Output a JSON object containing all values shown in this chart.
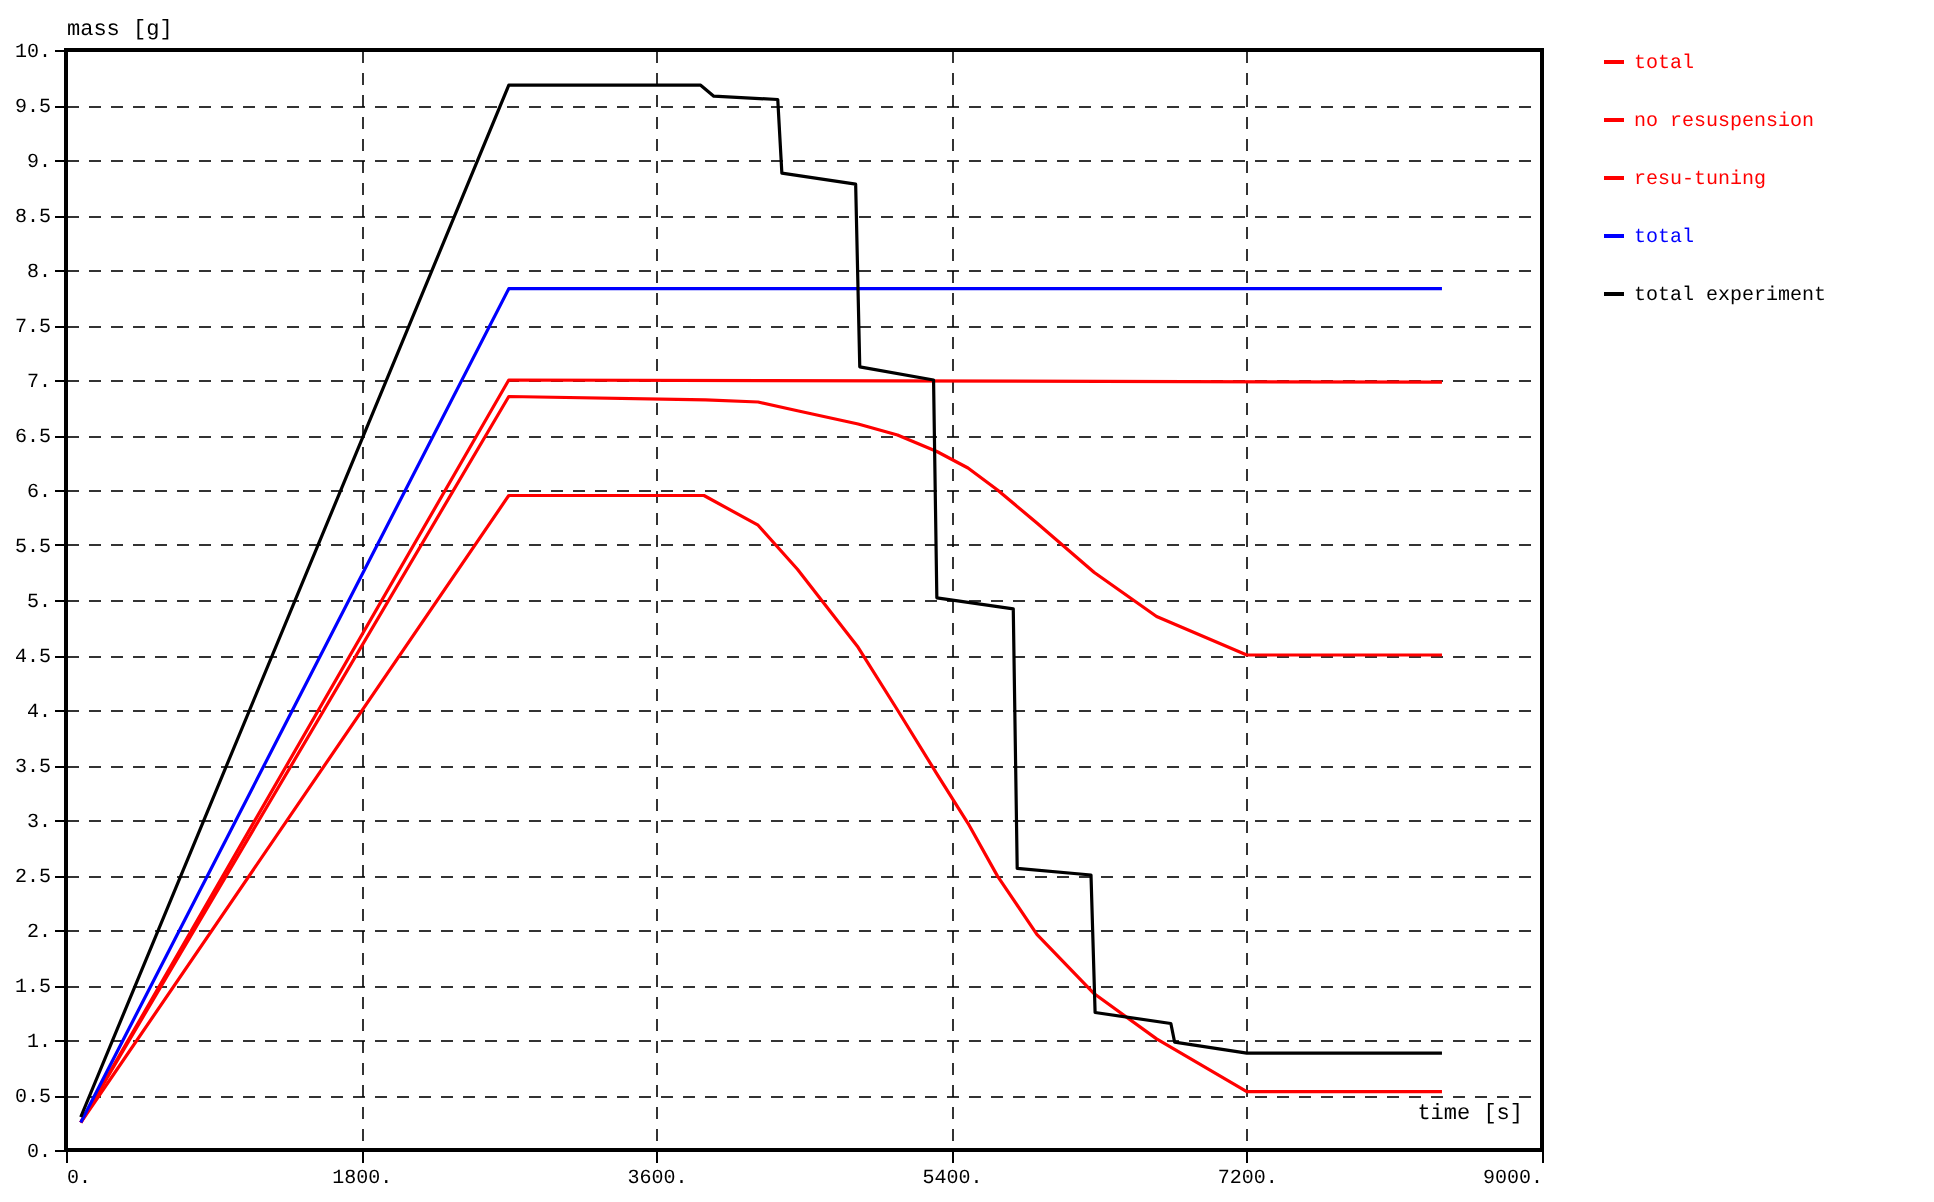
{
  "chart_data": {
    "type": "line",
    "xlabel": "time [s]",
    "ylabel": "mass [g]",
    "xlim": [
      0,
      9000
    ],
    "ylim": [
      0,
      10
    ],
    "xticks": [
      {
        "value": 0,
        "label": "0."
      },
      {
        "value": 1800,
        "label": "1800."
      },
      {
        "value": 3600,
        "label": "3600."
      },
      {
        "value": 5400,
        "label": "5400."
      },
      {
        "value": 7200,
        "label": "7200."
      },
      {
        "value": 9000,
        "label": "9000."
      }
    ],
    "yticks": [
      {
        "value": 0,
        "label": "0."
      },
      0.5,
      {
        "value": 1,
        "label": "1."
      },
      1.5,
      {
        "value": 2,
        "label": "2."
      },
      2.5,
      {
        "value": 3,
        "label": "3."
      },
      3.5,
      {
        "value": 4,
        "label": "4."
      },
      4.5,
      {
        "value": 5,
        "label": "5."
      },
      5.5,
      {
        "value": 6,
        "label": "6."
      },
      6.5,
      {
        "value": 7,
        "label": "7."
      },
      7.5,
      {
        "value": 8,
        "label": "8."
      },
      8.5,
      {
        "value": 9,
        "label": "9."
      },
      9.5,
      {
        "value": 10,
        "label": "10."
      }
    ],
    "grid": true,
    "legend": "right",
    "marker": "none",
    "line_style": "solid",
    "series": [
      {
        "name": "total",
        "color": "#ff0000",
        "x": [
          90,
          2700,
          3900,
          4220,
          4460,
          4830,
          5070,
          5310,
          5500,
          5680,
          5920,
          6270,
          6650,
          7200,
          8390
        ],
        "values": [
          0.25,
          6.85,
          6.82,
          6.8,
          6.72,
          6.6,
          6.5,
          6.35,
          6.2,
          6.0,
          5.7,
          5.25,
          4.85,
          4.5,
          4.5
        ]
      },
      {
        "name": "no resuspension",
        "color": "#ff0000",
        "x": [
          90,
          2700,
          8390
        ],
        "values": [
          0.25,
          7.0,
          6.98
        ]
      },
      {
        "name": "resu-tuning",
        "color": "#ff0000",
        "x": [
          90,
          2700,
          3890,
          4220,
          4460,
          4830,
          5070,
          5310,
          5500,
          5680,
          5920,
          6270,
          6650,
          7200,
          8390
        ],
        "values": [
          0.25,
          5.95,
          5.95,
          5.68,
          5.28,
          4.57,
          4.0,
          3.42,
          2.97,
          2.49,
          1.96,
          1.42,
          1.01,
          0.53,
          0.53
        ]
      },
      {
        "name": "total",
        "color": "#0000ff",
        "x": [
          90,
          2700,
          8390
        ],
        "values": [
          0.25,
          7.83,
          7.83
        ]
      },
      {
        "name": "total experiment",
        "color": "#000000",
        "x": [
          90,
          2700,
          3870,
          3950,
          4340,
          4365,
          4815,
          4840,
          5290,
          5310,
          5776,
          5800,
          6250,
          6275,
          6737,
          6760,
          7200,
          8390
        ],
        "values": [
          0.3,
          9.68,
          9.68,
          9.58,
          9.55,
          8.88,
          8.78,
          7.12,
          7.0,
          5.02,
          4.92,
          2.56,
          2.5,
          1.25,
          1.15,
          0.98,
          0.88,
          0.88
        ]
      }
    ]
  }
}
